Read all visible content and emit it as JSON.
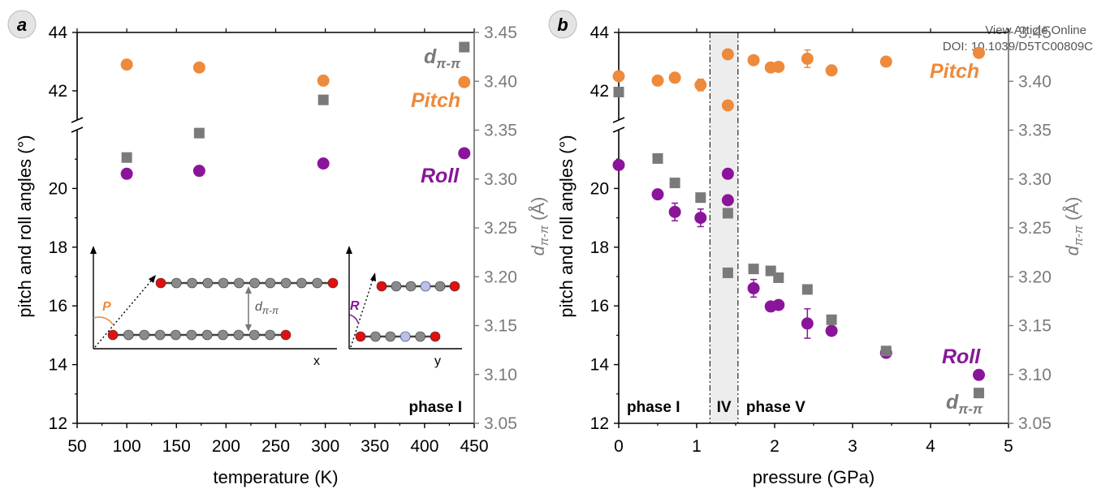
{
  "watermark": {
    "line1": "View Article Online",
    "line2": "DOI: 10.1039/D5TC00809C"
  },
  "chart_data": [
    {
      "type": "scatter",
      "panel": "a",
      "xlabel": "temperature (K)",
      "ylabel": "pitch and roll angles (°)",
      "y2label": "d",
      "y2label_sub": "π-π",
      "y2label_unit": "(Å)",
      "xlim": [
        50,
        450
      ],
      "xticks": [
        "50",
        "100",
        "150",
        "200",
        "250",
        "300",
        "350",
        "400",
        "450"
      ],
      "ylim_lower": [
        12,
        22
      ],
      "yticks_lower": [
        "12",
        "14",
        "16",
        "18",
        "20"
      ],
      "ylim_upper": [
        41,
        44
      ],
      "yticks_upper": [
        "42",
        "44"
      ],
      "y2lim": [
        3.05,
        3.45
      ],
      "y2ticks": [
        "3.05",
        "3.10",
        "3.15",
        "3.20",
        "3.25",
        "3.30",
        "3.35",
        "3.40",
        "3.45"
      ],
      "annotation": "phase I",
      "series": [
        {
          "name": "Pitch",
          "axis": "left",
          "marker": "circle",
          "color": "#ee8a3c",
          "x": [
            100,
            173,
            298,
            440
          ],
          "y": [
            42.9,
            42.8,
            42.35,
            42.3
          ]
        },
        {
          "name": "Roll",
          "axis": "left",
          "marker": "circle",
          "color": "#8a159a",
          "x": [
            100,
            173,
            298,
            440
          ],
          "y": [
            20.5,
            20.6,
            20.85,
            21.2
          ]
        },
        {
          "name": "dπ-π",
          "axis": "right",
          "marker": "square",
          "color": "#7a7a7a",
          "x": [
            100,
            173,
            298,
            440
          ],
          "y": [
            3.322,
            3.347,
            3.381,
            3.435
          ]
        }
      ],
      "inset": {
        "left_axis": "x",
        "right_axis": "y",
        "angle_left": "P",
        "angle_right": "R",
        "distance_label": "d",
        "distance_sub": "π-π"
      }
    },
    {
      "type": "scatter",
      "panel": "b",
      "xlabel": "pressure (GPa)",
      "ylabel": "pitch and roll angles (°)",
      "y2label": "d",
      "y2label_sub": "π-π",
      "y2label_unit": "(Å)",
      "xlim": [
        0,
        5
      ],
      "xticks": [
        "0",
        "1",
        "2",
        "3",
        "4",
        "5"
      ],
      "ylim_lower": [
        12,
        22
      ],
      "yticks_lower": [
        "12",
        "14",
        "16",
        "18",
        "20"
      ],
      "ylim_upper": [
        41,
        44
      ],
      "yticks_upper": [
        "42",
        "44"
      ],
      "y2lim": [
        3.05,
        3.45
      ],
      "y2ticks": [
        "3.05",
        "3.10",
        "3.15",
        "3.20",
        "3.25",
        "3.30",
        "3.35",
        "3.40",
        "3.45"
      ],
      "regions": [
        {
          "label": "phase I",
          "x_start": 0,
          "x_end": 1.17
        },
        {
          "label": "IV",
          "x_start": 1.17,
          "x_end": 1.53,
          "shaded": true
        },
        {
          "label": "phase V",
          "x_start": 1.53,
          "x_end": 5
        }
      ],
      "series": [
        {
          "name": "Pitch",
          "axis": "left",
          "marker": "circle",
          "color": "#ee8a3c",
          "x": [
            0.0,
            0.5,
            0.72,
            1.05,
            1.4,
            1.4,
            1.73,
            1.95,
            2.05,
            2.42,
            2.73,
            3.43,
            4.62
          ],
          "y": [
            42.5,
            42.35,
            42.45,
            42.2,
            43.25,
            41.5,
            43.05,
            42.8,
            42.82,
            43.1,
            42.7,
            43.0,
            43.3
          ]
        },
        {
          "name": "Roll",
          "axis": "left",
          "marker": "circle",
          "color": "#8a159a",
          "x": [
            0.0,
            0.5,
            0.72,
            1.05,
            1.4,
            1.4,
            1.73,
            1.95,
            2.05,
            2.42,
            2.73,
            3.43,
            4.62
          ],
          "y": [
            20.8,
            19.8,
            19.2,
            19.0,
            20.5,
            19.6,
            16.6,
            15.98,
            16.03,
            15.4,
            15.15,
            14.4,
            13.65
          ]
        },
        {
          "name": "dπ-π",
          "axis": "right",
          "marker": "square",
          "color": "#7a7a7a",
          "x": [
            0.0,
            0.5,
            0.72,
            1.05,
            1.4,
            1.4,
            1.73,
            1.95,
            2.05,
            2.42,
            2.73,
            3.43,
            4.62
          ],
          "y": [
            3.389,
            3.321,
            3.296,
            3.281,
            3.265,
            3.204,
            3.208,
            3.206,
            3.199,
            3.187,
            3.156,
            3.124,
            3.081
          ]
        }
      ]
    }
  ],
  "panel_labels": {
    "a": "a",
    "b": "b"
  },
  "labels": {
    "pitch": "Pitch",
    "roll": "Roll",
    "d": "d",
    "d_sub": "π-π"
  }
}
